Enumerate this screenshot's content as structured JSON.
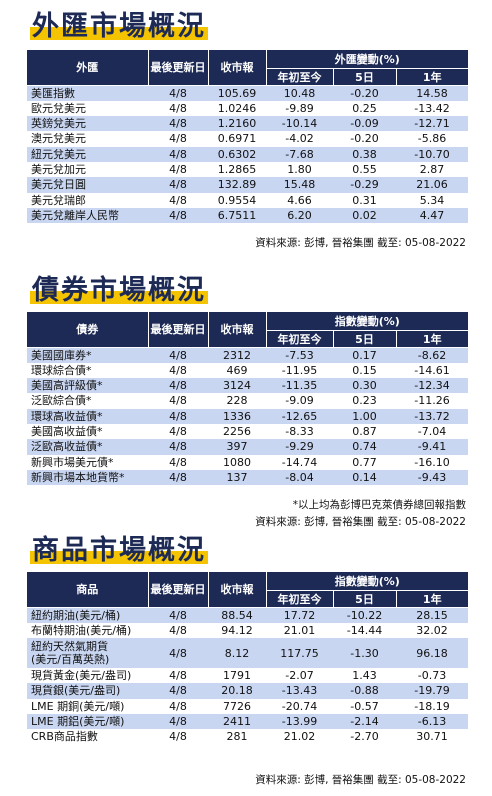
{
  "fx": {
    "title": "外匯市場概況",
    "headers": {
      "name": "外匯",
      "date": "最後更新日",
      "close": "收市報",
      "change_group": "外匯變動(%)",
      "ytd": "年初至今",
      "d5": "5日",
      "y1": "1年"
    },
    "rows": [
      {
        "name": "美匯指數",
        "date": "4/8",
        "close": "105.69",
        "ytd": "10.48",
        "d5": "-0.20",
        "y1": "14.58"
      },
      {
        "name": "歐元兌美元",
        "date": "4/8",
        "close": "1.0246",
        "ytd": "-9.89",
        "d5": "0.25",
        "y1": "-13.42"
      },
      {
        "name": "英鎊兌美元",
        "date": "4/8",
        "close": "1.2160",
        "ytd": "-10.14",
        "d5": "-0.09",
        "y1": "-12.71"
      },
      {
        "name": "澳元兌美元",
        "date": "4/8",
        "close": "0.6971",
        "ytd": "-4.02",
        "d5": "-0.20",
        "y1": "-5.86"
      },
      {
        "name": "紐元兌美元",
        "date": "4/8",
        "close": "0.6302",
        "ytd": "-7.68",
        "d5": "0.38",
        "y1": "-10.70"
      },
      {
        "name": "美元兌加元",
        "date": "4/8",
        "close": "1.2865",
        "ytd": "1.80",
        "d5": "0.55",
        "y1": "2.87"
      },
      {
        "name": "美元兌日圓",
        "date": "4/8",
        "close": "132.89",
        "ytd": "15.48",
        "d5": "-0.29",
        "y1": "21.06"
      },
      {
        "name": "美元兌瑞郎",
        "date": "4/8",
        "close": "0.9554",
        "ytd": "4.66",
        "d5": "0.31",
        "y1": "5.34"
      },
      {
        "name": "美元兌離岸人民幣",
        "date": "4/8",
        "close": "6.7511",
        "ytd": "6.20",
        "d5": "0.02",
        "y1": "4.47"
      }
    ],
    "source": "資料來源: 彭博, 晉裕集團 截至: 05-08-2022"
  },
  "bond": {
    "title": "債券市場概況",
    "headers": {
      "name": "債券",
      "date": "最後更新日",
      "close": "收市報",
      "change_group": "指數變動(%)",
      "ytd": "年初至今",
      "d5": "5日",
      "y1": "1年"
    },
    "rows": [
      {
        "name": "美國國庫券*",
        "date": "4/8",
        "close": "2312",
        "ytd": "-7.53",
        "d5": "0.17",
        "y1": "-8.62"
      },
      {
        "name": "環球綜合債*",
        "date": "4/8",
        "close": "469",
        "ytd": "-11.95",
        "d5": "0.15",
        "y1": "-14.61"
      },
      {
        "name": "美國高評級債*",
        "date": "4/8",
        "close": "3124",
        "ytd": "-11.35",
        "d5": "0.30",
        "y1": "-12.34"
      },
      {
        "name": "泛歐綜合債*",
        "date": "4/8",
        "close": "228",
        "ytd": "-9.09",
        "d5": "0.23",
        "y1": "-11.26"
      },
      {
        "name": "環球高收益債*",
        "date": "4/8",
        "close": "1336",
        "ytd": "-12.65",
        "d5": "1.00",
        "y1": "-13.72"
      },
      {
        "name": "美國高收益債*",
        "date": "4/8",
        "close": "2256",
        "ytd": "-8.33",
        "d5": "0.87",
        "y1": "-7.04"
      },
      {
        "name": "泛歐高收益債*",
        "date": "4/8",
        "close": "397",
        "ytd": "-9.29",
        "d5": "0.74",
        "y1": "-9.41"
      },
      {
        "name": "新興市場美元債*",
        "date": "4/8",
        "close": "1080",
        "ytd": "-14.74",
        "d5": "0.77",
        "y1": "-16.10"
      },
      {
        "name": "新興市場本地貨幣*",
        "date": "4/8",
        "close": "137",
        "ytd": "-8.04",
        "d5": "0.14",
        "y1": "-9.43"
      }
    ],
    "note": "*以上均為彭博巴克萊債券總回報指數",
    "source": "資料來源: 彭博, 晉裕集團 截至: 05-08-2022"
  },
  "commodity": {
    "title": "商品市場概況",
    "headers": {
      "name": "商品",
      "date": "最後更新日",
      "close": "收市報",
      "change_group": "指數變動(%)",
      "ytd": "年初至今",
      "d5": "5日",
      "y1": "1年"
    },
    "rows": [
      {
        "name": "紐約期油(美元/桶)",
        "date": "4/8",
        "close": "88.54",
        "ytd": "17.72",
        "d5": "-10.22",
        "y1": "28.15"
      },
      {
        "name": "布蘭特期油(美元/桶)",
        "date": "4/8",
        "close": "94.12",
        "ytd": "21.01",
        "d5": "-14.44",
        "y1": "32.02"
      },
      {
        "name": "紐約天然氣期貨",
        "name2": "(美元/百萬英熱)",
        "date": "4/8",
        "close": "8.12",
        "ytd": "117.75",
        "d5": "-1.30",
        "y1": "96.18"
      },
      {
        "name": "現貨黃金(美元/盎司)",
        "date": "4/8",
        "close": "1791",
        "ytd": "-2.07",
        "d5": "1.43",
        "y1": "-0.73"
      },
      {
        "name": "現貨銀(美元/盎司)",
        "date": "4/8",
        "close": "20.18",
        "ytd": "-13.43",
        "d5": "-0.88",
        "y1": "-19.79"
      },
      {
        "name": "LME 期銅(美元/噸)",
        "date": "4/8",
        "close": "7726",
        "ytd": "-20.74",
        "d5": "-0.57",
        "y1": "-18.19"
      },
      {
        "name": "LME 期鋁(美元/噸)",
        "date": "4/8",
        "close": "2411",
        "ytd": "-13.99",
        "d5": "-2.14",
        "y1": "-6.13"
      },
      {
        "name": "CRB商品指數",
        "date": "4/8",
        "close": "281",
        "ytd": "21.02",
        "d5": "-2.70",
        "y1": "30.71"
      }
    ],
    "source": "資料來源: 彭博, 晉裕集團 截至: 05-08-2022"
  }
}
